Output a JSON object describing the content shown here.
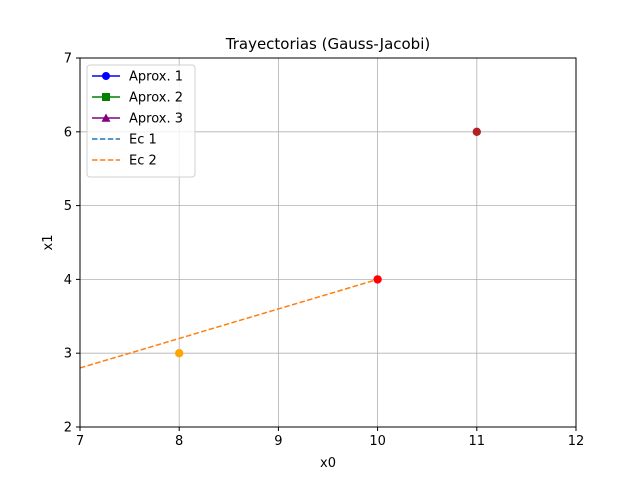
{
  "chart_data": {
    "type": "line",
    "title": "Trayectorias (Gauss-Jacobi)",
    "xlabel": "x0",
    "ylabel": "x1",
    "xlim": [
      7,
      12
    ],
    "ylim": [
      2,
      7
    ],
    "xticks": [
      "7",
      "8",
      "9",
      "10",
      "11",
      "12"
    ],
    "yticks": [
      "2",
      "3",
      "4",
      "5",
      "6",
      "7"
    ],
    "grid": true,
    "legend_position": "top-left",
    "series": [
      {
        "name": "Aprox. 1",
        "kind": "trajectory",
        "marker": "circle",
        "color": "#0000ff",
        "points": []
      },
      {
        "name": "Aprox. 2",
        "kind": "trajectory",
        "marker": "square",
        "color": "#008000",
        "points": []
      },
      {
        "name": "Aprox. 3",
        "kind": "trajectory",
        "marker": "triangle",
        "color": "#800080",
        "points": []
      },
      {
        "name": "Ec 1",
        "kind": "equation",
        "dash": true,
        "color": "#1f77b4",
        "points": []
      },
      {
        "name": "Ec 2",
        "kind": "equation",
        "dash": true,
        "color": "#ff7f0e",
        "points": [
          [
            7,
            2.8
          ],
          [
            10,
            4
          ]
        ]
      }
    ],
    "points": [
      {
        "x": 11,
        "y": 6,
        "color": "#b22222"
      },
      {
        "x": 10,
        "y": 4,
        "color": "#ff0000"
      },
      {
        "x": 8,
        "y": 3,
        "color": "#ffa500"
      }
    ]
  }
}
